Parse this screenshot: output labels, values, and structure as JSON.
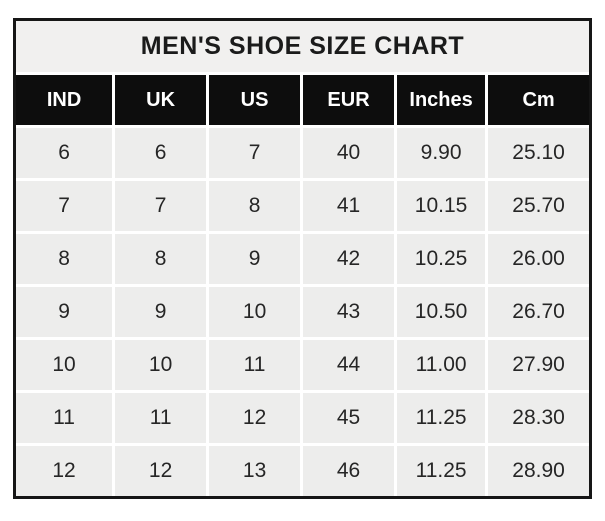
{
  "title": "MEN'S SHOE SIZE CHART",
  "table": {
    "headers": [
      "IND",
      "UK",
      "US",
      "EUR",
      "Inches",
      "Cm"
    ],
    "rows": [
      [
        "6",
        "6",
        "7",
        "40",
        "9.90",
        "25.10"
      ],
      [
        "7",
        "7",
        "8",
        "41",
        "10.15",
        "25.70"
      ],
      [
        "8",
        "8",
        "9",
        "42",
        "10.25",
        "26.00"
      ],
      [
        "9",
        "9",
        "10",
        "43",
        "10.50",
        "26.70"
      ],
      [
        "10",
        "10",
        "11",
        "44",
        "11.00",
        "27.90"
      ],
      [
        "11",
        "11",
        "12",
        "45",
        "11.25",
        "28.30"
      ],
      [
        "12",
        "12",
        "13",
        "46",
        "11.25",
        "28.90"
      ]
    ]
  },
  "colors": {
    "page_background": "#ffffff",
    "outer_border": "#161616",
    "title_background": "#f1f0ef",
    "header_background": "#0d0d0d",
    "header_text": "#ffffff",
    "cell_background": "#ededec",
    "cell_text": "#262626",
    "grid_lines": "#ffffff"
  }
}
